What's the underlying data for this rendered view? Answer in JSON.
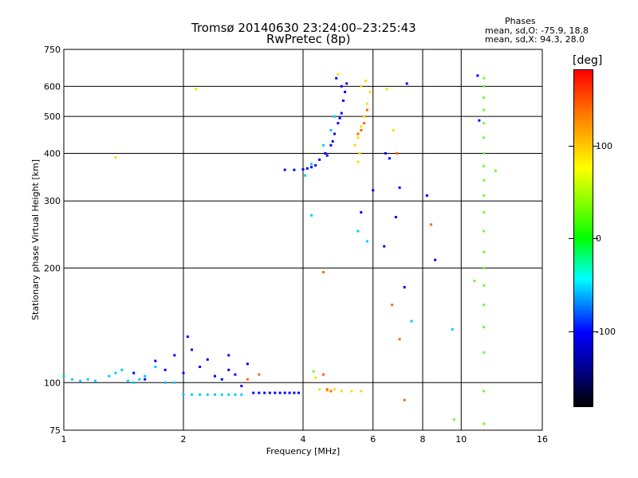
{
  "header": {
    "title_line1": "Tromsø 20140630 23:24:00–23:25:43",
    "title_line2": "RwPretec (8p)",
    "phase_title": "Phases",
    "phase_line1": "mean, sd,O: -75.9, 18.8",
    "phase_line2": "mean, sd,X:  94.3, 28.0"
  },
  "colorbar": {
    "unit": "[deg]",
    "ticks": [
      "100",
      "0",
      "-100"
    ],
    "colors": [
      "#ff0000",
      "#ff8000",
      "#ffff00",
      "#00ff00",
      "#00ffff",
      "#0080ff",
      "#0000ff",
      "#000080",
      "#000000"
    ]
  },
  "chart_data": {
    "type": "scatter",
    "xlabel": "Frequency [MHz]",
    "ylabel": "Stationary phase Virtual Height [km]",
    "xscale": "log",
    "yscale": "log",
    "xlim": [
      1,
      16
    ],
    "ylim": [
      75,
      750
    ],
    "x_ticks": [
      "1",
      "2",
      "4",
      "6",
      "8",
      "10",
      "16"
    ],
    "y_ticks": [
      "75",
      "100",
      "200",
      "300",
      "400",
      "500",
      "600",
      "750"
    ],
    "grid": true,
    "series": [
      {
        "color": "#0000ff",
        "points": [
          [
            4.2,
            368
          ],
          [
            4.4,
            385
          ],
          [
            4.55,
            400
          ],
          [
            4.7,
            420
          ],
          [
            4.8,
            450
          ],
          [
            4.9,
            480
          ],
          [
            5.0,
            510
          ],
          [
            5.05,
            550
          ],
          [
            5.1,
            580
          ],
          [
            5.15,
            610
          ],
          [
            4.3,
            372
          ],
          [
            4.6,
            395
          ],
          [
            4.75,
            430
          ],
          [
            4.95,
            495
          ],
          [
            5.0,
            600
          ],
          [
            4.85,
            630
          ],
          [
            3.6,
            362
          ],
          [
            3.8,
            362
          ],
          [
            4.0,
            363
          ],
          [
            4.1,
            365
          ],
          [
            3.0,
            94
          ],
          [
            3.1,
            94
          ],
          [
            3.3,
            94
          ],
          [
            3.5,
            94
          ],
          [
            3.7,
            94
          ],
          [
            3.9,
            94
          ],
          [
            3.2,
            94
          ],
          [
            3.4,
            94
          ],
          [
            3.6,
            94
          ],
          [
            3.8,
            94
          ],
          [
            2.9,
            112
          ],
          [
            2.6,
            108
          ],
          [
            2.4,
            104
          ],
          [
            2.2,
            110
          ],
          [
            2.0,
            106
          ],
          [
            1.8,
            108
          ],
          [
            1.9,
            118
          ],
          [
            1.7,
            114
          ],
          [
            1.6,
            102
          ],
          [
            2.1,
            122
          ],
          [
            2.3,
            115
          ],
          [
            2.5,
            102
          ],
          [
            2.7,
            105
          ],
          [
            2.8,
            98
          ],
          [
            1.5,
            106
          ],
          [
            6.4,
            228
          ],
          [
            6.85,
            272
          ],
          [
            7.0,
            325
          ],
          [
            7.2,
            178
          ],
          [
            6.6,
            388
          ],
          [
            8.2,
            310
          ],
          [
            8.6,
            210
          ],
          [
            11.0,
            640
          ],
          [
            11.1,
            488
          ],
          [
            6.0,
            320
          ],
          [
            7.3,
            610
          ],
          [
            6.45,
            400
          ],
          [
            2.05,
            132
          ],
          [
            2.6,
            118
          ],
          [
            5.6,
            280
          ]
        ]
      },
      {
        "color": "#00ccff",
        "points": [
          [
            1.0,
            104
          ],
          [
            1.05,
            102
          ],
          [
            1.1,
            101
          ],
          [
            1.15,
            102
          ],
          [
            1.2,
            101
          ],
          [
            1.3,
            104
          ],
          [
            1.35,
            106
          ],
          [
            1.45,
            101
          ],
          [
            1.5,
            100
          ],
          [
            1.55,
            102
          ],
          [
            2.0,
            93
          ],
          [
            2.1,
            93
          ],
          [
            2.2,
            93
          ],
          [
            2.3,
            93
          ],
          [
            2.4,
            93
          ],
          [
            2.5,
            93
          ],
          [
            2.6,
            93
          ],
          [
            2.7,
            93
          ],
          [
            2.8,
            93
          ],
          [
            1.4,
            108
          ],
          [
            1.6,
            104
          ],
          [
            1.7,
            110
          ],
          [
            4.05,
            350
          ],
          [
            4.2,
            375
          ],
          [
            4.5,
            420
          ],
          [
            4.7,
            460
          ],
          [
            4.8,
            500
          ],
          [
            5.5,
            250
          ],
          [
            5.8,
            235
          ],
          [
            4.2,
            275
          ],
          [
            9.5,
            138
          ],
          [
            7.5,
            145
          ],
          [
            1.8,
            100
          ],
          [
            1.9,
            100
          ]
        ]
      },
      {
        "color": "#ffdd00",
        "points": [
          [
            5.4,
            420
          ],
          [
            5.5,
            440
          ],
          [
            5.6,
            470
          ],
          [
            5.7,
            500
          ],
          [
            5.8,
            540
          ],
          [
            5.9,
            580
          ],
          [
            5.75,
            620
          ],
          [
            5.6,
            600
          ],
          [
            5.5,
            380
          ],
          [
            5.55,
            400
          ],
          [
            4.4,
            96
          ],
          [
            4.6,
            95
          ],
          [
            4.8,
            96
          ],
          [
            5.0,
            95
          ],
          [
            5.3,
            95
          ],
          [
            5.6,
            95
          ],
          [
            4.3,
            103
          ],
          [
            1.35,
            390
          ],
          [
            2.15,
            590
          ],
          [
            4.9,
            645
          ],
          [
            6.5,
            590
          ],
          [
            6.75,
            460
          ]
        ]
      },
      {
        "color": "#ff6600",
        "points": [
          [
            5.5,
            450
          ],
          [
            5.6,
            460
          ],
          [
            5.7,
            480
          ],
          [
            5.8,
            520
          ],
          [
            4.6,
            96
          ],
          [
            4.7,
            95
          ],
          [
            4.5,
            105
          ],
          [
            3.1,
            105
          ],
          [
            2.9,
            102
          ],
          [
            6.7,
            160
          ],
          [
            6.9,
            400
          ],
          [
            7.0,
            130
          ],
          [
            7.2,
            90
          ],
          [
            8.4,
            260
          ],
          [
            4.5,
            195
          ]
        ]
      },
      {
        "color": "#66ff33",
        "points": [
          [
            11.4,
            630
          ],
          [
            11.4,
            600
          ],
          [
            11.4,
            560
          ],
          [
            11.4,
            520
          ],
          [
            11.4,
            480
          ],
          [
            11.4,
            440
          ],
          [
            11.4,
            400
          ],
          [
            11.4,
            370
          ],
          [
            11.4,
            340
          ],
          [
            11.4,
            310
          ],
          [
            11.4,
            280
          ],
          [
            11.4,
            250
          ],
          [
            11.4,
            220
          ],
          [
            11.4,
            200
          ],
          [
            11.4,
            180
          ],
          [
            11.4,
            160
          ],
          [
            11.4,
            140
          ],
          [
            11.4,
            120
          ],
          [
            11.4,
            95
          ],
          [
            11.4,
            78
          ],
          [
            4.25,
            107
          ],
          [
            12.2,
            360
          ],
          [
            10.8,
            185
          ],
          [
            9.6,
            80
          ]
        ]
      }
    ]
  }
}
